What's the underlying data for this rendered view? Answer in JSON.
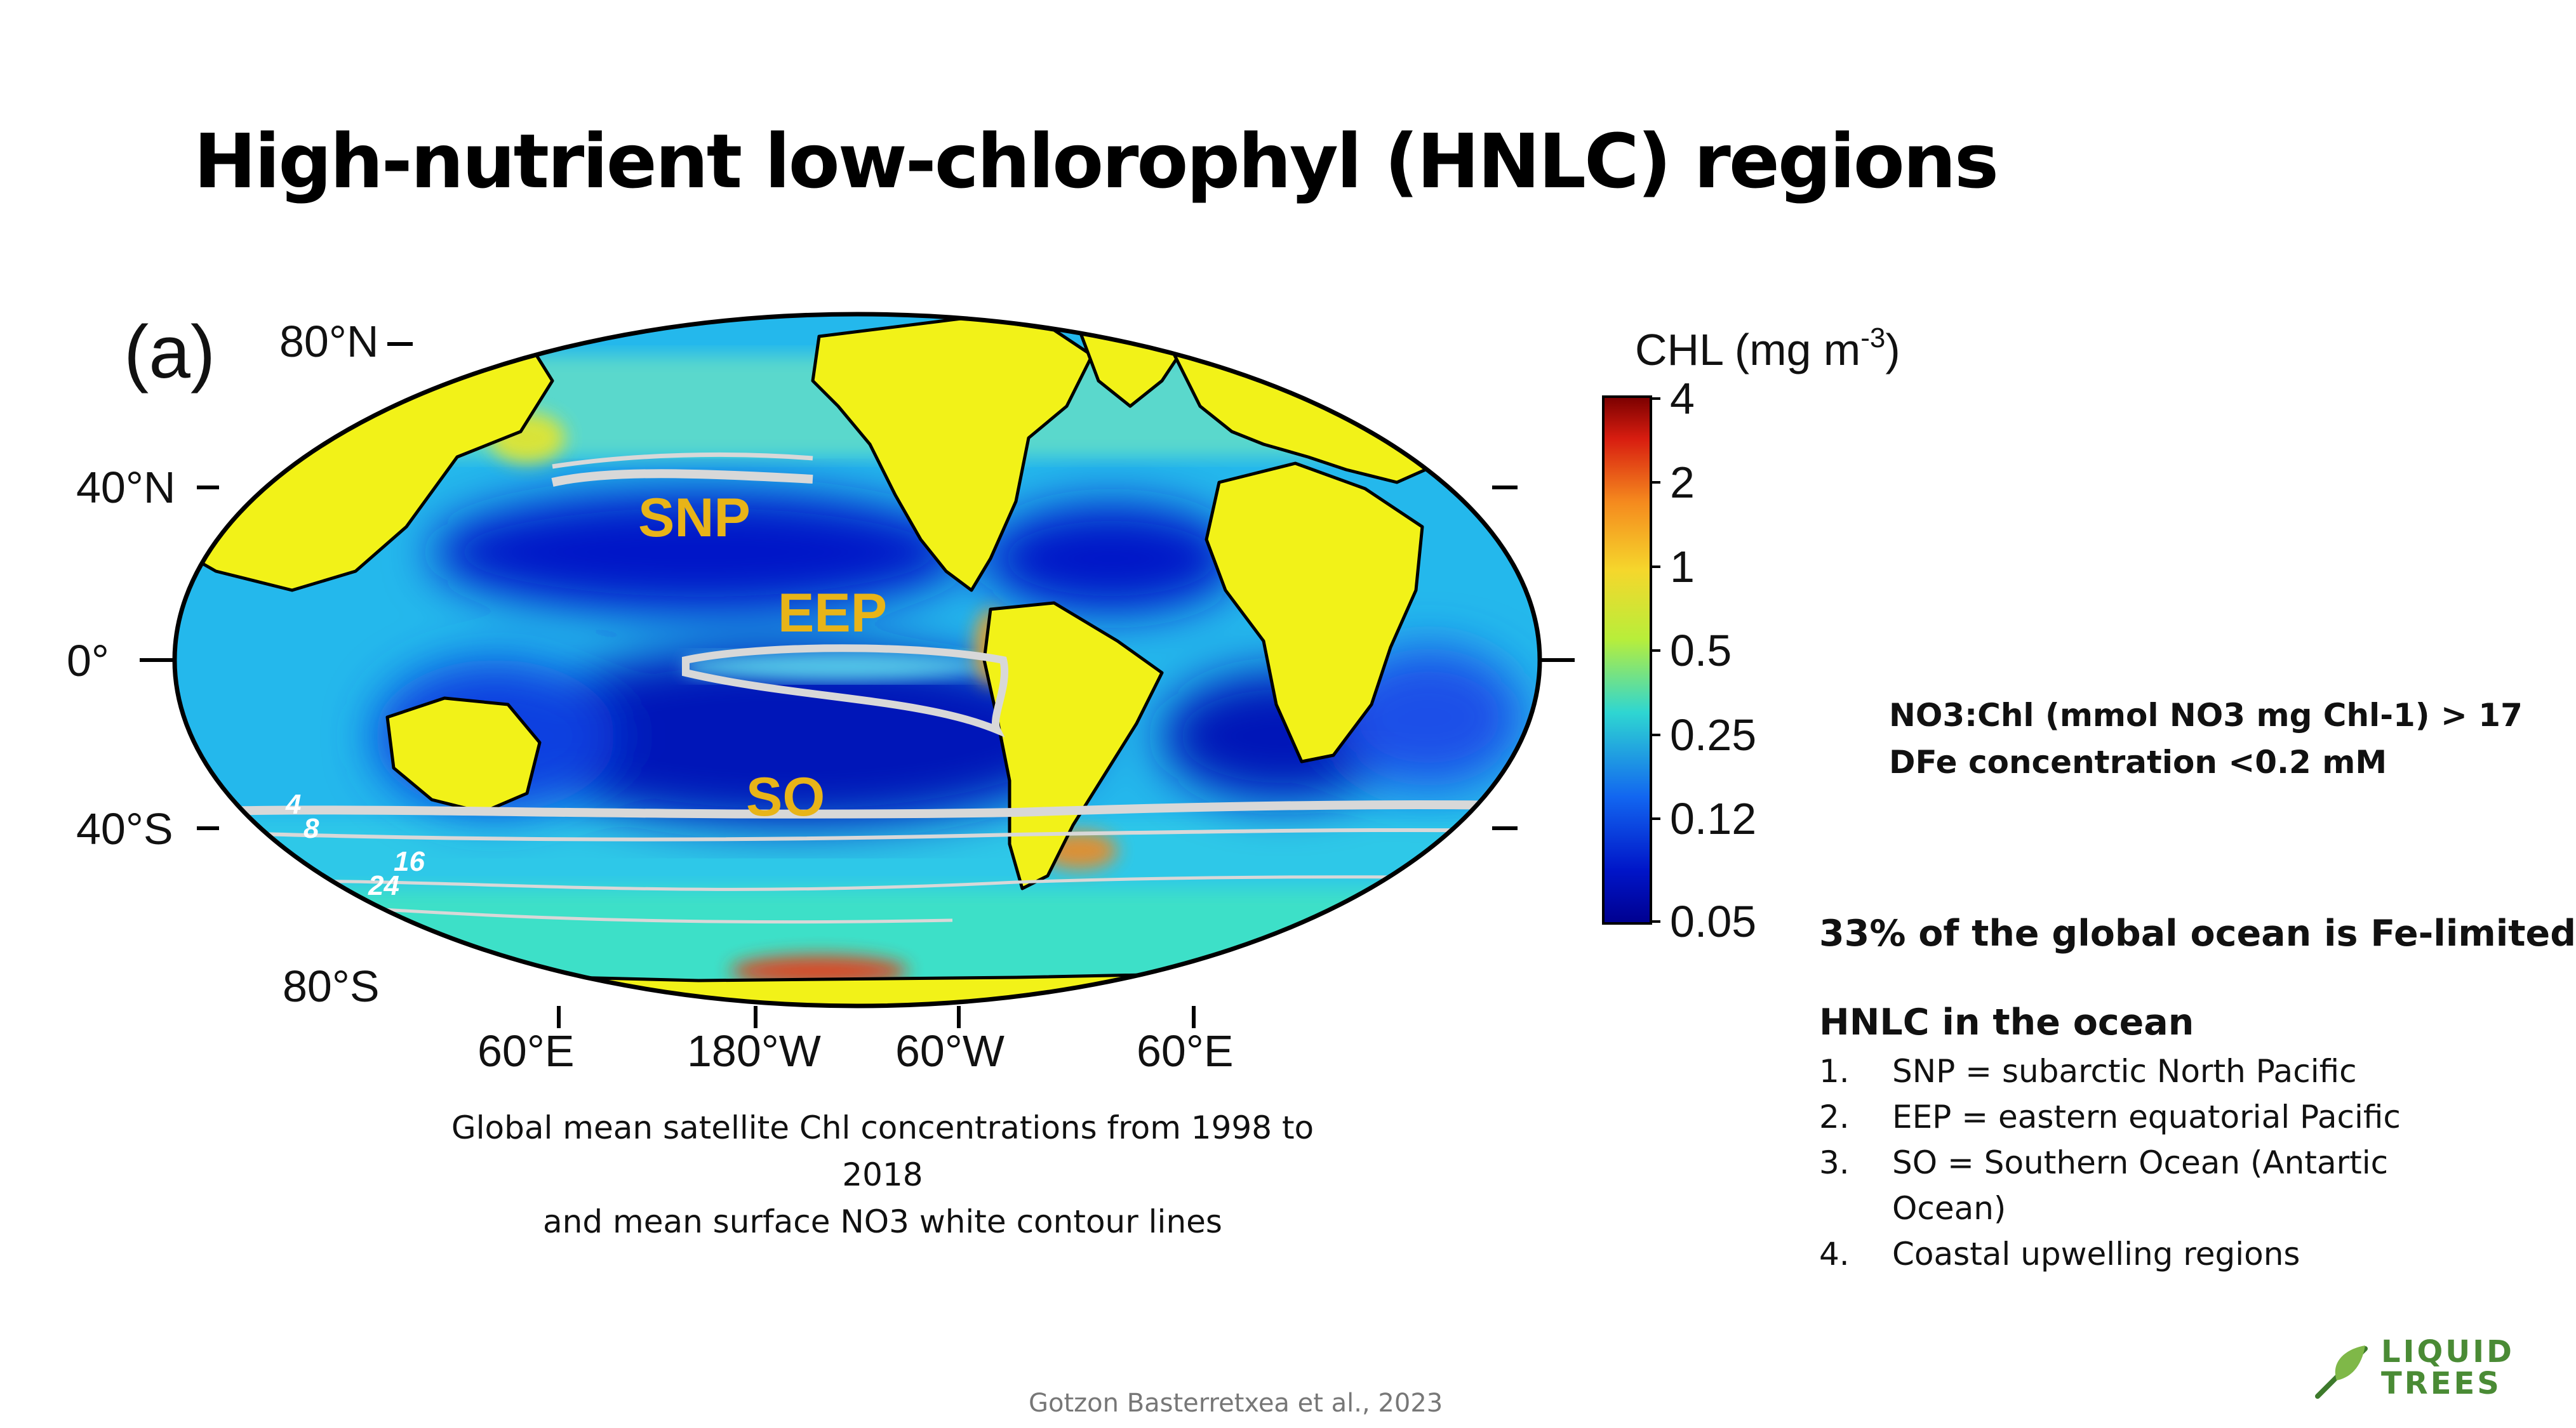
{
  "slide": {
    "title": "High-nutrient low-chlorophyl (HNLC) regions",
    "source": "Gotzon Basterretxea et al., 2023"
  },
  "figure": {
    "panel_label": "(a)",
    "lat_labels": [
      "80°N",
      "40°N",
      "0°",
      "40°S",
      "80°S"
    ],
    "lon_labels": [
      "60°E",
      "180°W",
      "60°W",
      "60°E"
    ],
    "regions": [
      "SNP",
      "EEP",
      "SO"
    ],
    "contour_labels": [
      "4",
      "8",
      "16",
      "24"
    ],
    "caption_line1": "Global mean satellite Chl concentrations from 1998 to 2018",
    "caption_line2": "and mean surface NO3 white contour lines"
  },
  "colorbar": {
    "title_main": "CHL (mg m",
    "title_sup": "-3",
    "title_end": ")",
    "ticks": [
      "4",
      "2",
      "1",
      "0.5",
      "0.25",
      "0.12",
      "0.05"
    ],
    "colors": [
      "#7a0000",
      "#e03010",
      "#f7a21b",
      "#f2f229",
      "#2dd2d0",
      "#1a5cff",
      "#00008f"
    ]
  },
  "criteria": {
    "line1": "NO3:Chl (mmol NO3 mg Chl-1) > 17",
    "line2": "DFe concentration <0.2 mM"
  },
  "fe_limited": "33% of the global ocean is Fe-limited",
  "hnlc": {
    "heading": "HNLC in the ocean",
    "items": [
      {
        "num": "1.",
        "text": "SNP = subarctic North Pacific"
      },
      {
        "num": "2.",
        "text": "EEP = eastern equatorial Pacific"
      },
      {
        "num": "3.",
        "text": "SO = Southern Ocean (Antartic Ocean)"
      },
      {
        "num": "4.",
        "text": "Coastal upwelling regions"
      }
    ]
  },
  "logo": {
    "line1": "LIQUID",
    "line2": "TREES"
  }
}
